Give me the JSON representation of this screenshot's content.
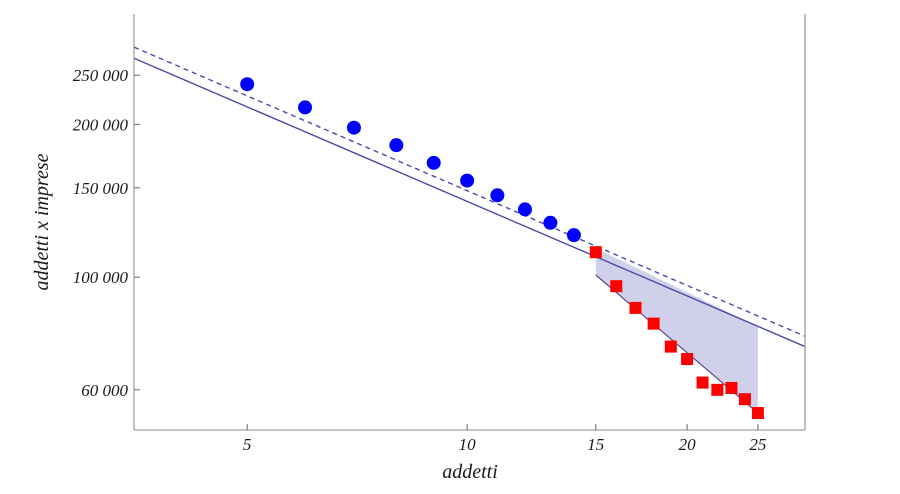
{
  "chart_data": {
    "type": "scatter",
    "title": "",
    "xlabel": "addetti",
    "ylabel": "addetti x imprese",
    "x_scale": "log",
    "y_scale": "log",
    "xlim": [
      3.5,
      29
    ],
    "ylim": [
      50000,
      330000
    ],
    "x_ticks": [
      5,
      10,
      15,
      20,
      25
    ],
    "x_tick_labels": [
      "5",
      "10",
      "15",
      "20",
      "25"
    ],
    "y_ticks": [
      60000,
      100000,
      150000,
      200000,
      250000
    ],
    "y_tick_labels": [
      "60 000",
      "100 000",
      "150 000",
      "200 000",
      "250 000"
    ],
    "grid": false,
    "legend": "none",
    "colors": {
      "blue_points": "#0000ff",
      "red_points": "#ff0000",
      "lines": "#4a4aa8",
      "shaded": "#c8c8e6"
    },
    "series": [
      {
        "marker": "circle",
        "color": "#0000ff",
        "x": [
          5,
          6,
          7,
          8,
          9,
          10,
          11,
          12,
          13,
          14
        ],
        "y": [
          240000,
          216000,
          197000,
          182000,
          168000,
          155000,
          145000,
          136000,
          128000,
          121000
        ]
      },
      {
        "marker": "square",
        "color": "#ff0000",
        "x": [
          15,
          16,
          17,
          18,
          19,
          20,
          21,
          22,
          23,
          24,
          25
        ],
        "y": [
          112000,
          96000,
          87000,
          81000,
          73000,
          69000,
          62000,
          60000,
          60500,
          57500,
          54000
        ]
      },
      {
        "style": "solid-line",
        "color": "#4a4aa8",
        "x": [
          3.5,
          29
        ],
        "y": [
          270000,
          73000
        ]
      },
      {
        "style": "dashed-line",
        "color": "#4a4aa8",
        "x": [
          3.5,
          29
        ],
        "y": [
          284000,
          76500
        ]
      },
      {
        "style": "shaded-region",
        "color": "#c8c8e6",
        "x": [
          15,
          25
        ],
        "y_upper": [
          114000,
          80000
        ],
        "y_lower": [
          101000,
          54000
        ]
      }
    ]
  }
}
